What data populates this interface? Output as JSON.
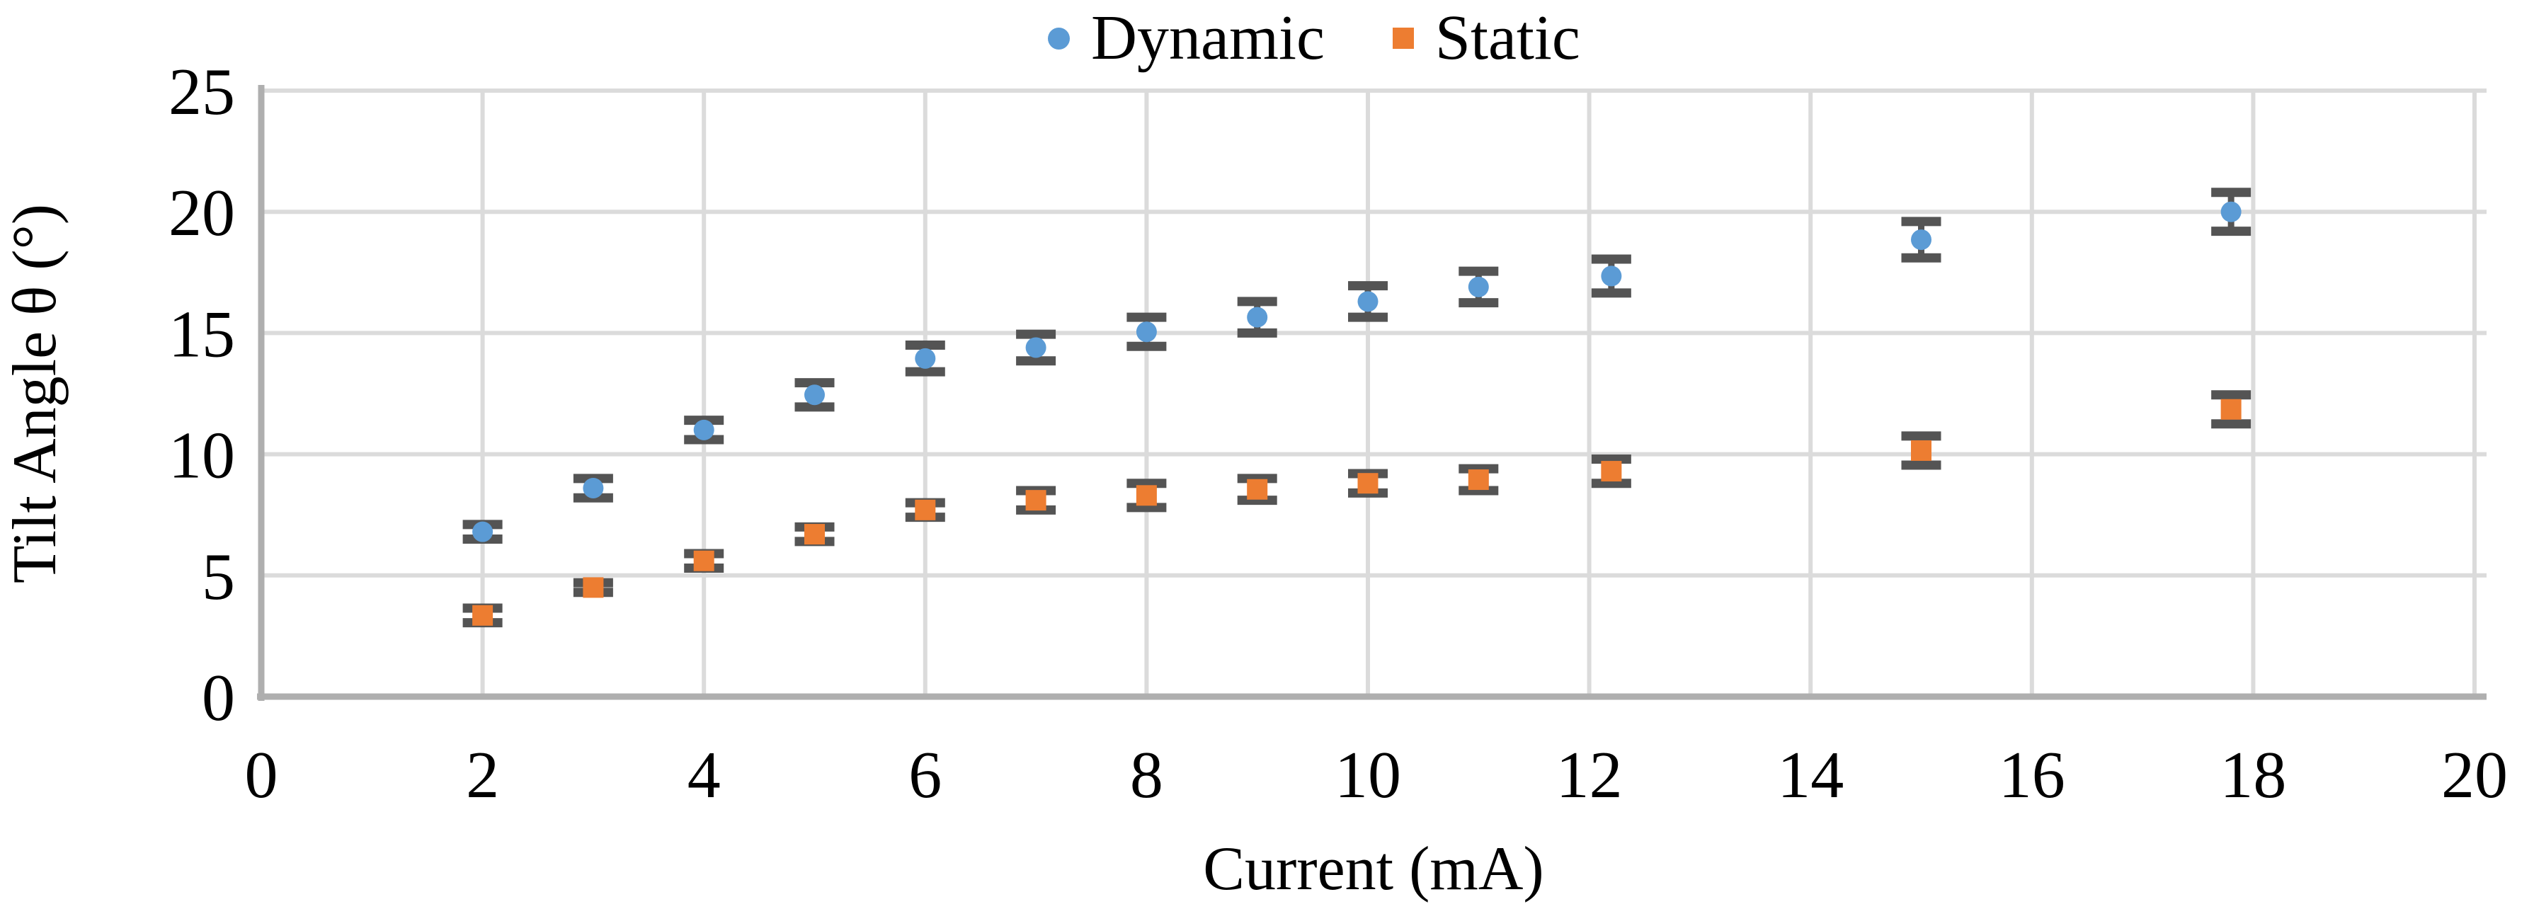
{
  "chart_data": {
    "type": "scatter",
    "title": "",
    "xlabel": "Current (mA)",
    "ylabel": "Tilt Angle θ (°)",
    "xlim": [
      0,
      20
    ],
    "ylim": [
      0,
      25
    ],
    "x_ticks": [
      0,
      2,
      4,
      6,
      8,
      10,
      12,
      14,
      16,
      18,
      20
    ],
    "y_ticks": [
      0,
      5,
      10,
      15,
      20,
      25
    ],
    "grid": true,
    "legend_position": "top-center",
    "error_bars": true,
    "series": [
      {
        "name": "Dynamic",
        "marker": "circle",
        "color": "#5B9BD5",
        "points": [
          {
            "x": 2,
            "y": 6.8,
            "err": 0.3
          },
          {
            "x": 3,
            "y": 8.6,
            "err": 0.4
          },
          {
            "x": 4,
            "y": 11.0,
            "err": 0.4
          },
          {
            "x": 5,
            "y": 12.45,
            "err": 0.5
          },
          {
            "x": 6,
            "y": 13.95,
            "err": 0.55
          },
          {
            "x": 7,
            "y": 14.4,
            "err": 0.55
          },
          {
            "x": 8,
            "y": 15.05,
            "err": 0.6
          },
          {
            "x": 9,
            "y": 15.65,
            "err": 0.65
          },
          {
            "x": 10,
            "y": 16.3,
            "err": 0.65
          },
          {
            "x": 11,
            "y": 16.9,
            "err": 0.65
          },
          {
            "x": 12.2,
            "y": 17.35,
            "err": 0.7
          },
          {
            "x": 15,
            "y": 18.85,
            "err": 0.75
          },
          {
            "x": 17.8,
            "y": 20.0,
            "err": 0.8
          }
        ]
      },
      {
        "name": "Static",
        "marker": "square",
        "color": "#ED7D31",
        "points": [
          {
            "x": 2,
            "y": 3.35,
            "err": 0.3
          },
          {
            "x": 3,
            "y": 4.5,
            "err": 0.2
          },
          {
            "x": 4,
            "y": 5.6,
            "err": 0.3
          },
          {
            "x": 5,
            "y": 6.7,
            "err": 0.3
          },
          {
            "x": 6,
            "y": 7.7,
            "err": 0.3
          },
          {
            "x": 7,
            "y": 8.1,
            "err": 0.4
          },
          {
            "x": 8,
            "y": 8.3,
            "err": 0.5
          },
          {
            "x": 9,
            "y": 8.55,
            "err": 0.45
          },
          {
            "x": 10,
            "y": 8.8,
            "err": 0.4
          },
          {
            "x": 11,
            "y": 8.95,
            "err": 0.45
          },
          {
            "x": 12.2,
            "y": 9.3,
            "err": 0.5
          },
          {
            "x": 15,
            "y": 10.15,
            "err": 0.6
          },
          {
            "x": 17.8,
            "y": 11.85,
            "err": 0.6
          }
        ]
      }
    ],
    "colors": {
      "dynamic": "#5B9BD5",
      "static": "#ED7D31",
      "error_bar": "#545454",
      "gridline": "#DBDBDB",
      "axis_line": "#AFAFAF",
      "text": "#000000"
    }
  },
  "legend": {
    "items": [
      {
        "label": "Dynamic"
      },
      {
        "label": "Static"
      }
    ]
  }
}
